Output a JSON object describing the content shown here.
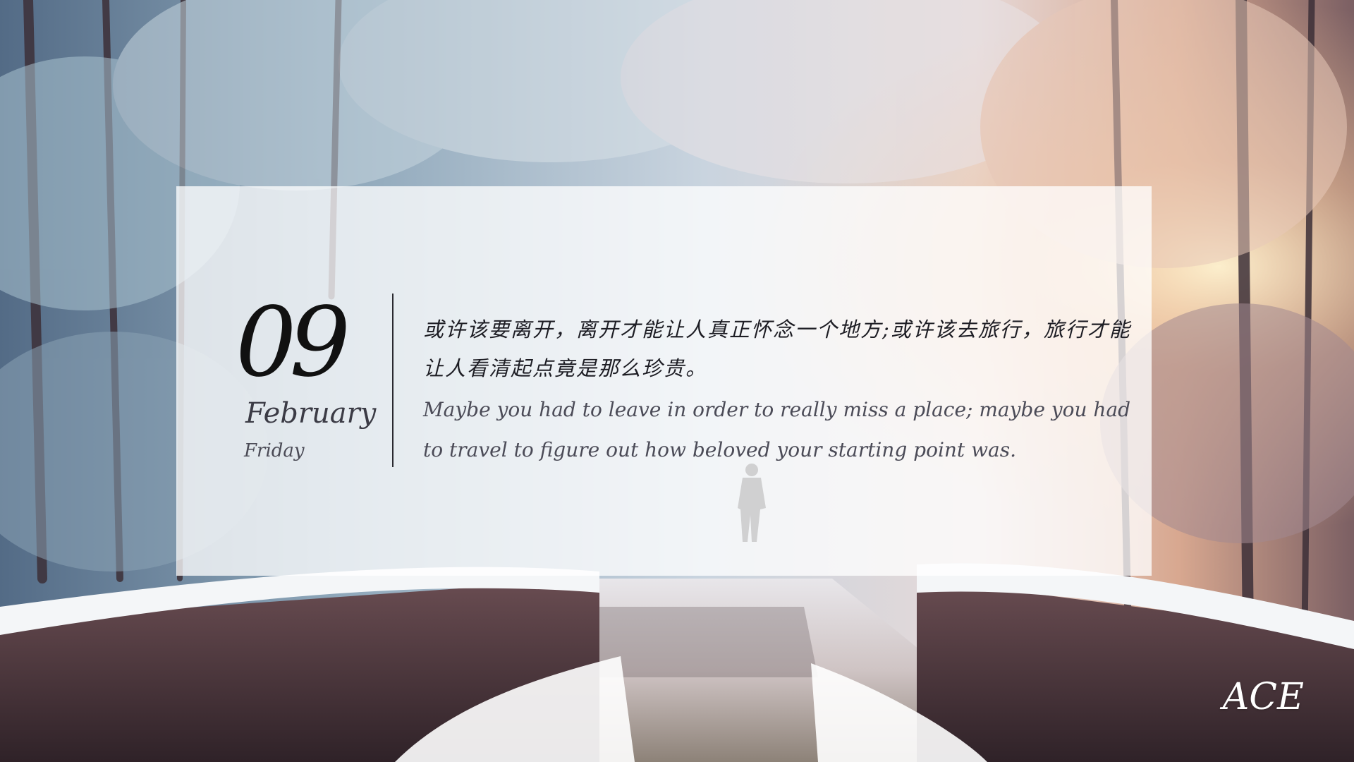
{
  "date": {
    "day": "09",
    "month": "February",
    "weekday": "Friday"
  },
  "quote": {
    "chinese": "或许该要离开，离开才能让人真正怀念一个地方;或许该去旅行，旅行才能让人看清起点竟是那么珍贵。",
    "english": "Maybe you had to leave in order to really miss a place; maybe you had to travel to figure out how beloved your starting point was."
  },
  "brand": {
    "logo_text": "ACE"
  },
  "colors": {
    "card_overlay": "#ffffff",
    "text_primary": "#1d1d24",
    "text_secondary": "#4b4b57",
    "logo": "#ffffff"
  }
}
